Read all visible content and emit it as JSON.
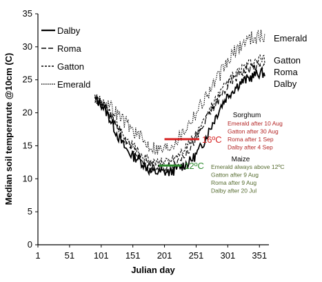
{
  "chart_data": {
    "type": "line",
    "xlabel": "Julian day",
    "ylabel": "Median soil temperarute @10cm (C)",
    "xlim": [
      1,
      366
    ],
    "ylim": [
      0,
      35
    ],
    "xticks": [
      1,
      51,
      101,
      151,
      201,
      251,
      301,
      351
    ],
    "yticks": [
      0,
      5,
      10,
      15,
      20,
      25,
      30,
      35
    ],
    "grid": false,
    "legend_position": "top-left",
    "series": [
      {
        "name": "Dalby",
        "line_style": "solid",
        "x": [
          91,
          100,
          110,
          120,
          130,
          140,
          150,
          160,
          170,
          180,
          190,
          200,
          210,
          220,
          230,
          240,
          250,
          260,
          270,
          280,
          290,
          300,
          310,
          320,
          330,
          340,
          350,
          360
        ],
        "y": [
          22,
          21.5,
          20,
          18,
          16,
          14.5,
          13.5,
          13,
          12,
          11,
          11,
          11,
          11,
          11.5,
          12,
          12.5,
          13.5,
          15,
          17,
          19,
          21,
          22.5,
          23.5,
          24.5,
          25,
          25.5,
          26,
          26
        ]
      },
      {
        "name": "Roma",
        "line_style": "dashed",
        "x": [
          91,
          100,
          110,
          120,
          130,
          140,
          150,
          160,
          170,
          180,
          190,
          200,
          210,
          220,
          230,
          240,
          250,
          260,
          270,
          280,
          290,
          300,
          310,
          320,
          330,
          340,
          350,
          360
        ],
        "y": [
          22,
          21.5,
          20.5,
          19,
          17,
          15.5,
          14.5,
          13.5,
          12.5,
          12,
          11.5,
          11.5,
          12,
          12.5,
          13.5,
          14.5,
          16,
          17.5,
          19.5,
          21,
          22.5,
          24,
          25,
          26,
          26.5,
          27,
          27,
          27
        ]
      },
      {
        "name": "Gatton",
        "line_style": "short-dash",
        "x": [
          91,
          100,
          110,
          120,
          130,
          140,
          150,
          160,
          170,
          180,
          190,
          200,
          210,
          220,
          230,
          240,
          250,
          260,
          270,
          280,
          290,
          300,
          310,
          320,
          330,
          340,
          350,
          360
        ],
        "y": [
          22,
          21.5,
          20.5,
          19,
          17.5,
          16,
          15,
          14,
          13,
          12.5,
          12.5,
          12.5,
          13,
          13.5,
          14.5,
          15.5,
          16.5,
          18,
          20,
          21.5,
          23,
          24.5,
          25.5,
          26.5,
          27,
          27.5,
          28,
          28
        ]
      },
      {
        "name": "Emerald",
        "line_style": "dotted",
        "x": [
          91,
          100,
          110,
          120,
          130,
          140,
          150,
          160,
          170,
          180,
          190,
          200,
          210,
          220,
          230,
          240,
          250,
          260,
          270,
          280,
          290,
          300,
          310,
          320,
          330,
          340,
          350,
          360
        ],
        "y": [
          22,
          22,
          21.5,
          20.5,
          19.5,
          18.5,
          17.5,
          16.5,
          15.5,
          15,
          14.5,
          14.5,
          15,
          16,
          17,
          18.5,
          20,
          21.5,
          23,
          24.5,
          26,
          27.5,
          29,
          30,
          31,
          31.5,
          31.5,
          31.5
        ]
      }
    ],
    "end_labels": [
      "Emerald",
      "Gatton",
      "Roma",
      "Dalby"
    ],
    "thresholds": [
      {
        "label": "16ºC",
        "value": 16,
        "x_start": 201,
        "x_end": 256,
        "color": "#d62020"
      },
      {
        "label": "12ºC",
        "value": 12,
        "x_start": 192,
        "x_end": 228,
        "color": "#2e8b2e"
      }
    ],
    "annotations": [
      {
        "title": "Sorghum",
        "color": "#b32424",
        "lines": [
          "Emerald after 10 Aug",
          "Gatton after 30 Aug",
          "Roma after 1 Sep",
          "Dalby after 4 Sep"
        ]
      },
      {
        "title": "Maize",
        "color": "#556b2f",
        "lines": [
          "Emerald always above 12ºC",
          "Gatton after 9 Aug",
          "Roma after 9 Aug",
          "Dalby after 20 Jul"
        ]
      }
    ]
  }
}
